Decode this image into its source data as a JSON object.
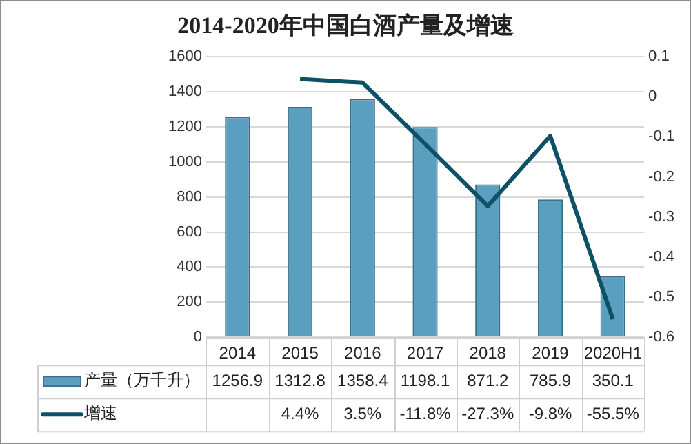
{
  "chart_data": {
    "type": "bar",
    "title": "2014-2020年中国白酒产量及增速",
    "categories": [
      "2014",
      "2015",
      "2016",
      "2017",
      "2018",
      "2019",
      "2020H1"
    ],
    "series": [
      {
        "name": "产量（万千升）",
        "color": "#5a9ec0",
        "values": [
          1256.9,
          1312.8,
          1358.4,
          1198.1,
          871.2,
          785.9,
          350.1
        ],
        "value_labels": [
          "1256.9",
          "1312.8",
          "1358.4",
          "1198.1",
          "871.2",
          "785.9",
          "350.1"
        ]
      },
      {
        "name": "增速",
        "type": "line",
        "axis": "y2",
        "color": "#0e5166",
        "values": [
          null,
          0.044,
          0.035,
          -0.118,
          -0.273,
          -0.098,
          -0.555
        ],
        "value_labels": [
          null,
          "4.4%",
          "3.5%",
          "-11.8%",
          "-27.3%",
          "-9.8%",
          "-55.5%"
        ]
      }
    ],
    "ylim": [
      0,
      1600
    ],
    "yticks": [
      0,
      200,
      400,
      600,
      800,
      1000,
      1200,
      1400,
      1600
    ],
    "y2lim": [
      -0.6,
      0.1
    ],
    "y2ticks": [
      0.1,
      0,
      -0.1,
      -0.2,
      -0.3,
      -0.4,
      -0.5,
      -0.6
    ],
    "grid": "y",
    "legend": "bottom",
    "marker": "none",
    "line_style": "solid"
  }
}
